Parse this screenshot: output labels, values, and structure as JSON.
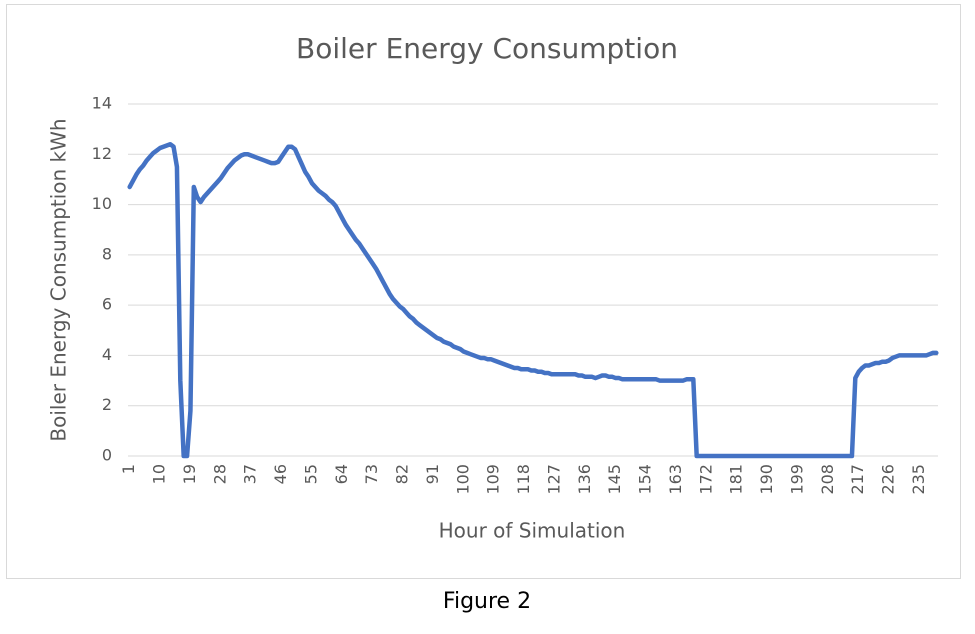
{
  "chart_data": {
    "type": "line",
    "title": "Boiler Energy Consumption",
    "x_label": "Hour of Simulation",
    "y_label": "Boiler Energy Consumption kWh",
    "categories": [
      1,
      null,
      null,
      null,
      null,
      null,
      null,
      null,
      null,
      10,
      null,
      null,
      null,
      null,
      null,
      null,
      null,
      null,
      19,
      null,
      null,
      null,
      null,
      null,
      null,
      null,
      null,
      28,
      null,
      null,
      null,
      null,
      null,
      null,
      null,
      null,
      37,
      null,
      null,
      null,
      null,
      null,
      null,
      null,
      null,
      46,
      null,
      null,
      null,
      null,
      null,
      null,
      null,
      null,
      55,
      null,
      null,
      null,
      null,
      null,
      null,
      null,
      null,
      64,
      null,
      null,
      null,
      null,
      null,
      null,
      null,
      null,
      73,
      null,
      null,
      null,
      null,
      null,
      null,
      null,
      null,
      82,
      null,
      null,
      null,
      null,
      null,
      null,
      null,
      null,
      91,
      null,
      null,
      null,
      null,
      null,
      null,
      null,
      null,
      100,
      null,
      null,
      null,
      null,
      null,
      null,
      null,
      null,
      109,
      null,
      null,
      null,
      null,
      null,
      null,
      null,
      null,
      118,
      null,
      null,
      null,
      null,
      null,
      null,
      null,
      null,
      127,
      null,
      null,
      null,
      null,
      null,
      null,
      null,
      null,
      136,
      null,
      null,
      null,
      null,
      null,
      null,
      null,
      null,
      145,
      null,
      null,
      null,
      null,
      null,
      null,
      null,
      null,
      154,
      null,
      null,
      null,
      null,
      null,
      null,
      null,
      null,
      163,
      null,
      null,
      null,
      null,
      null,
      null,
      null,
      null,
      172,
      null,
      null,
      null,
      null,
      null,
      null,
      null,
      null,
      181,
      null,
      null,
      null,
      null,
      null,
      null,
      null,
      null,
      190,
      null,
      null,
      null,
      null,
      null,
      null,
      null,
      null,
      199,
      null,
      null,
      null,
      null,
      null,
      null,
      null,
      null,
      208,
      null,
      null,
      null,
      null,
      null,
      null,
      null,
      null,
      217,
      null,
      null,
      null,
      null,
      null,
      null,
      null,
      null,
      226,
      null,
      null,
      null,
      null,
      null,
      null,
      null,
      null,
      235,
      null,
      null,
      null,
      null,
      null
    ],
    "series": [
      {
        "color": "#4472c4",
        "values": [
          10.7,
          10.95,
          11.2,
          11.4,
          11.55,
          11.75,
          11.9,
          12.05,
          12.15,
          12.25,
          12.3,
          12.35,
          12.4,
          12.3,
          11.5,
          3.0,
          0,
          0,
          1.8,
          10.7,
          10.3,
          10.1,
          10.3,
          10.45,
          10.6,
          10.75,
          10.9,
          11.05,
          11.25,
          11.45,
          11.6,
          11.75,
          11.85,
          11.95,
          12.0,
          12.0,
          11.95,
          11.9,
          11.85,
          11.8,
          11.75,
          11.7,
          11.65,
          11.65,
          11.7,
          11.9,
          12.1,
          12.3,
          12.3,
          12.2,
          11.9,
          11.6,
          11.3,
          11.1,
          10.85,
          10.7,
          10.55,
          10.45,
          10.35,
          10.2,
          10.1,
          9.95,
          9.7,
          9.45,
          9.2,
          9.0,
          8.8,
          8.6,
          8.45,
          8.25,
          8.05,
          7.85,
          7.65,
          7.45,
          7.2,
          6.95,
          6.7,
          6.45,
          6.25,
          6.1,
          5.95,
          5.85,
          5.7,
          5.55,
          5.45,
          5.3,
          5.2,
          5.1,
          5.0,
          4.9,
          4.8,
          4.7,
          4.65,
          4.55,
          4.5,
          4.45,
          4.35,
          4.3,
          4.25,
          4.15,
          4.1,
          4.05,
          4.0,
          3.95,
          3.9,
          3.9,
          3.85,
          3.85,
          3.8,
          3.75,
          3.7,
          3.65,
          3.6,
          3.55,
          3.5,
          3.5,
          3.45,
          3.45,
          3.45,
          3.4,
          3.4,
          3.35,
          3.35,
          3.3,
          3.3,
          3.25,
          3.25,
          3.25,
          3.25,
          3.25,
          3.25,
          3.25,
          3.25,
          3.2,
          3.2,
          3.15,
          3.15,
          3.15,
          3.1,
          3.15,
          3.2,
          3.2,
          3.15,
          3.15,
          3.1,
          3.1,
          3.05,
          3.05,
          3.05,
          3.05,
          3.05,
          3.05,
          3.05,
          3.05,
          3.05,
          3.05,
          3.05,
          3.0,
          3.0,
          3.0,
          3.0,
          3.0,
          3.0,
          3.0,
          3.0,
          3.05,
          3.05,
          3.05,
          0,
          0,
          0,
          0,
          0,
          0,
          0,
          0,
          0,
          0,
          0,
          0,
          0,
          0,
          0,
          0,
          0,
          0,
          0,
          0,
          0,
          0,
          0,
          0,
          0,
          0,
          0,
          0,
          0,
          0,
          0,
          0,
          0,
          0,
          0,
          0,
          0,
          0,
          0,
          0,
          0,
          0,
          0,
          0,
          0,
          0,
          0,
          3.1,
          3.35,
          3.5,
          3.6,
          3.6,
          3.65,
          3.7,
          3.7,
          3.75,
          3.75,
          3.8,
          3.9,
          3.95,
          4.0,
          4.0,
          4.0,
          4.0,
          4.0,
          4.0,
          4.0,
          4.0,
          4.0,
          4.05,
          4.1,
          4.1
        ]
      }
    ],
    "ylim": [
      0,
      14
    ],
    "yticks": [
      0,
      2,
      4,
      6,
      8,
      10,
      12,
      14
    ],
    "grid": true
  },
  "caption": "Figure 2"
}
